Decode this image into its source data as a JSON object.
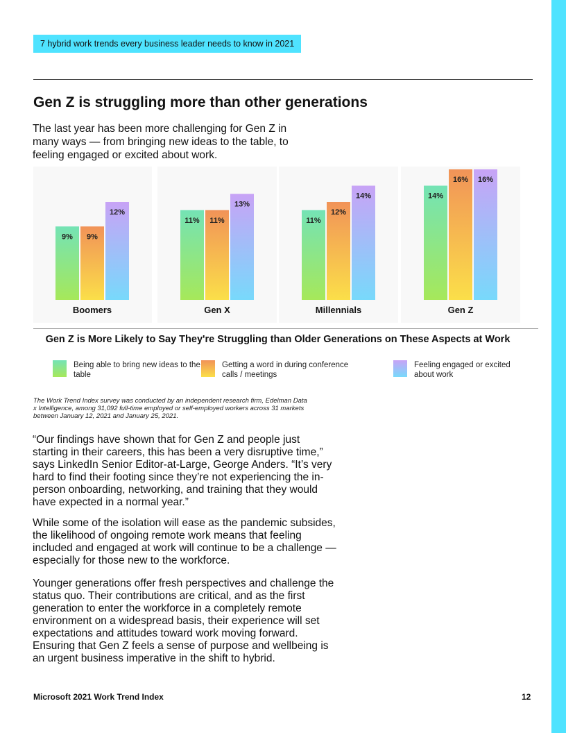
{
  "header": {
    "tag": "7 hybrid work trends every business leader needs to know in 2021"
  },
  "section": {
    "title": "Gen Z is struggling more than other generations",
    "intro": "The last year has been more challenging for Gen Z in many ways — from bringing new ideas to the table, to feeling engaged or excited about work."
  },
  "chart_data": {
    "type": "bar",
    "title": "Gen Z is More Likely to Say They're Struggling than Older Generations on These Aspects at Work",
    "categories": [
      "Boomers",
      "Gen X",
      "Millennials",
      "Gen Z"
    ],
    "series": [
      {
        "name": "Being able to bring new ideas to the table",
        "values": [
          9,
          11,
          11,
          14
        ],
        "top": "#74e3b5",
        "bottom": "#a6e85a"
      },
      {
        "name": "Getting a word in during conference calls / meetings",
        "values": [
          9,
          11,
          12,
          16
        ],
        "top": "#f19358",
        "bottom": "#fbdf49"
      },
      {
        "name": "Feeling engaged or excited about work",
        "values": [
          12,
          13,
          14,
          16
        ],
        "top": "#c8a3f6",
        "bottom": "#78d9fb"
      }
    ],
    "value_suffix": "%",
    "ylim": [
      0,
      16
    ],
    "xlabel": "",
    "ylabel": "",
    "grid": false,
    "legend_position": "bottom"
  },
  "legend": {
    "items": [
      "Being able to bring new ideas to the table",
      "Getting a word in during conference calls / meetings",
      "Feeling engaged or excited about work"
    ]
  },
  "footnote": "The Work Trend Index survey was conducted by an independent research firm, Edelman Data x Intelligence, among 31,092 full-time employed or self-employed workers across 31 markets between January 12, 2021 and January 25, 2021.",
  "body": {
    "p1": "“Our findings have shown that for Gen Z and people just starting in their careers, this has been a very disruptive time,” says LinkedIn Senior Editor-at-Large, George Anders. “It’s very hard to find their footing since they’re not experiencing the in-person onboarding, networking, and training that they would have expected in a normal year.”",
    "p2": "While some of the isolation will ease as the pandemic subsides, the likelihood of ongoing remote work means that feeling included and engaged at work will continue to be a challenge — especially for those new to the workforce.",
    "p3": "Younger generations offer fresh perspectives and challenge the status quo. Their contributions are critical, and as the first generation to enter the workforce in a completely remote environment on a widespread basis, their experience will set expectations and attitudes toward work moving forward. Ensuring that Gen Z feels a sense of purpose and wellbeing is an urgent business imperative in the shift to hybrid."
  },
  "footer": {
    "left": "Microsoft 2021 Work Trend Index",
    "page_number": "12"
  }
}
